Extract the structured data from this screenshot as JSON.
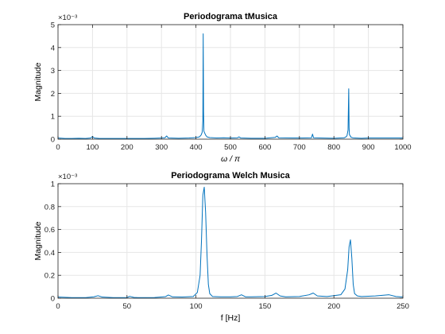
{
  "colors": {
    "line": "#0072BD",
    "grid": "#e6e6e6",
    "axis": "#262626"
  },
  "chart_data": [
    {
      "type": "line",
      "title": "Periodograma tMusica",
      "xlabel": "ω / π",
      "ylabel": "Magnitude",
      "exponent_label": "×10⁻³",
      "xlim": [
        0,
        1000
      ],
      "ylim": [
        0,
        5
      ],
      "xticks": [
        "0",
        "100",
        "200",
        "300",
        "400",
        "500",
        "600",
        "700",
        "800",
        "900",
        "1000"
      ],
      "yticks": [
        "0",
        "1",
        "2",
        "3",
        "4",
        "5"
      ],
      "grid": true,
      "series": [
        {
          "x": [
            0,
            20,
            40,
            60,
            80,
            95,
            100,
            105,
            120,
            150,
            180,
            200,
            220,
            250,
            280,
            300,
            310,
            315,
            320,
            350,
            380,
            400,
            410,
            415,
            418,
            420,
            421,
            422,
            423,
            425,
            428,
            432,
            440,
            460,
            480,
            500,
            520,
            525,
            530,
            560,
            600,
            630,
            635,
            640,
            680,
            700,
            735,
            738,
            741,
            760,
            800,
            830,
            835,
            838,
            841,
            843,
            844,
            845,
            847,
            850,
            855,
            860,
            880,
            900,
            950,
            1000
          ],
          "values": [
            0.05,
            0.03,
            0.03,
            0.04,
            0.03,
            0.05,
            0.12,
            0.05,
            0.03,
            0.03,
            0.03,
            0.03,
            0.03,
            0.03,
            0.04,
            0.05,
            0.06,
            0.14,
            0.05,
            0.04,
            0.05,
            0.07,
            0.1,
            0.18,
            0.3,
            0.8,
            4.6,
            1.2,
            0.35,
            0.28,
            0.18,
            0.1,
            0.07,
            0.05,
            0.06,
            0.05,
            0.06,
            0.1,
            0.05,
            0.04,
            0.04,
            0.08,
            0.14,
            0.06,
            0.05,
            0.05,
            0.06,
            0.22,
            0.06,
            0.05,
            0.04,
            0.06,
            0.1,
            0.15,
            0.4,
            2.2,
            0.5,
            0.2,
            0.15,
            0.08,
            0.06,
            0.05,
            0.04,
            0.05,
            0.05,
            0.05
          ]
        }
      ]
    },
    {
      "type": "line",
      "title": "Periodograma Welch Musica",
      "xlabel": "f [Hz]",
      "ylabel": "Magnitude",
      "exponent_label": "×10⁻³",
      "xlim": [
        0,
        250
      ],
      "ylim": [
        0,
        1
      ],
      "xticks": [
        "0",
        "50",
        "100",
        "150",
        "200",
        "250"
      ],
      "yticks": [
        "0",
        "0.2",
        "0.4",
        "0.6",
        "0.8",
        "1"
      ],
      "grid": true,
      "series": [
        {
          "x": [
            0,
            10,
            20,
            26,
            29,
            32,
            40,
            50,
            52,
            55,
            58,
            70,
            78,
            80,
            83,
            90,
            98,
            101,
            103,
            104,
            105,
            106,
            107,
            108,
            109,
            110,
            112,
            118,
            125,
            130,
            133,
            136,
            140,
            150,
            155,
            158,
            161,
            165,
            175,
            182,
            185,
            188,
            195,
            205,
            208,
            210,
            211,
            212,
            213,
            214,
            215,
            217,
            220,
            230,
            240,
            245,
            250
          ],
          "values": [
            0.01,
            0.005,
            0.005,
            0.012,
            0.022,
            0.01,
            0.005,
            0.006,
            0.016,
            0.007,
            0.005,
            0.006,
            0.014,
            0.028,
            0.012,
            0.01,
            0.015,
            0.05,
            0.2,
            0.5,
            0.9,
            0.97,
            0.75,
            0.38,
            0.12,
            0.04,
            0.015,
            0.012,
            0.012,
            0.015,
            0.03,
            0.012,
            0.012,
            0.015,
            0.025,
            0.045,
            0.02,
            0.012,
            0.015,
            0.03,
            0.045,
            0.02,
            0.015,
            0.03,
            0.08,
            0.25,
            0.45,
            0.51,
            0.35,
            0.12,
            0.04,
            0.02,
            0.015,
            0.02,
            0.03,
            0.015,
            0.01
          ]
        }
      ]
    }
  ]
}
